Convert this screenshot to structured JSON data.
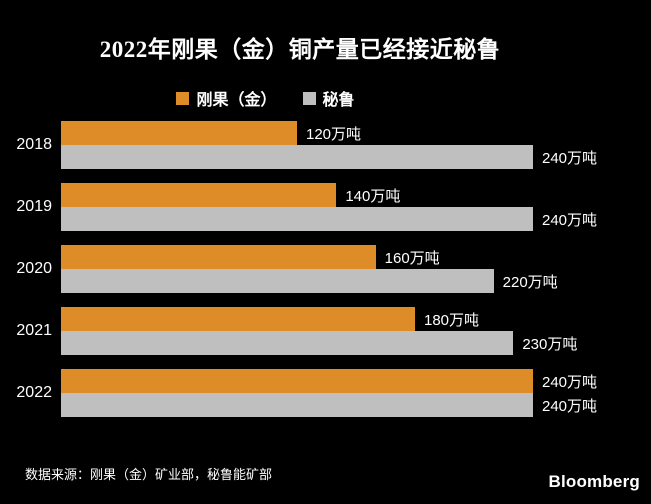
{
  "title": "2022年刚果（金）铜产量已经接近秘鲁",
  "legend": {
    "items": [
      {
        "label": "刚果（金）",
        "color": "#DE8C28"
      },
      {
        "label": "秘鲁",
        "color": "#BFBFBF"
      }
    ]
  },
  "chart_data": {
    "type": "bar",
    "orientation": "horizontal",
    "title": "2022年刚果（金）铜产量已经接近秘鲁",
    "categories": [
      "2018",
      "2019",
      "2020",
      "2021",
      "2022"
    ],
    "series": [
      {
        "name": "刚果（金）",
        "color": "#DE8C28",
        "values": [
          120,
          140,
          160,
          180,
          240
        ]
      },
      {
        "name": "秘鲁",
        "color": "#BFBFBF",
        "values": [
          240,
          240,
          220,
          230,
          240
        ]
      }
    ],
    "value_suffix": "万吨",
    "data_labels": [
      [
        "120万吨",
        "240万吨"
      ],
      [
        "140万吨",
        "240万吨"
      ],
      [
        "160万吨",
        "220万吨"
      ],
      [
        "180万吨",
        "230万吨"
      ],
      [
        "240万吨",
        "240万吨"
      ]
    ],
    "xlim": [
      0,
      300
    ],
    "grid": false,
    "legend_position": "top"
  },
  "footer": {
    "source": "数据来源：刚果（金）矿业部，秘鲁能矿部",
    "brand": "Bloomberg"
  },
  "colors": {
    "background": "#000000",
    "text": "#FFFFFF",
    "congo": "#DE8C28",
    "peru": "#BFBFBF"
  }
}
